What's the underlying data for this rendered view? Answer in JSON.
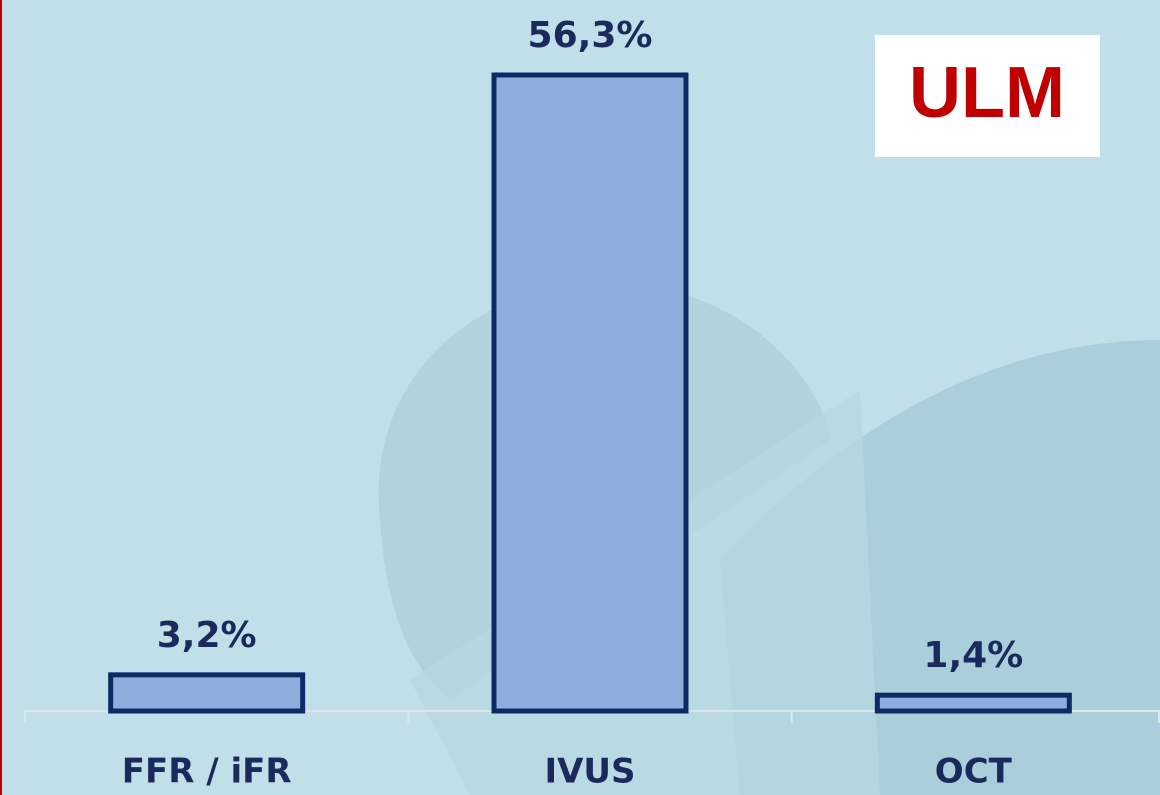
{
  "chart_data": {
    "type": "bar",
    "annotation": "ULM",
    "categories": [
      "FFR / iFR",
      "IVUS",
      "OCT"
    ],
    "values": [
      3.2,
      56.3,
      1.4
    ],
    "value_labels": [
      "3,2%",
      "56,3%",
      "1,4%"
    ],
    "color": "#8eaddd"
  }
}
